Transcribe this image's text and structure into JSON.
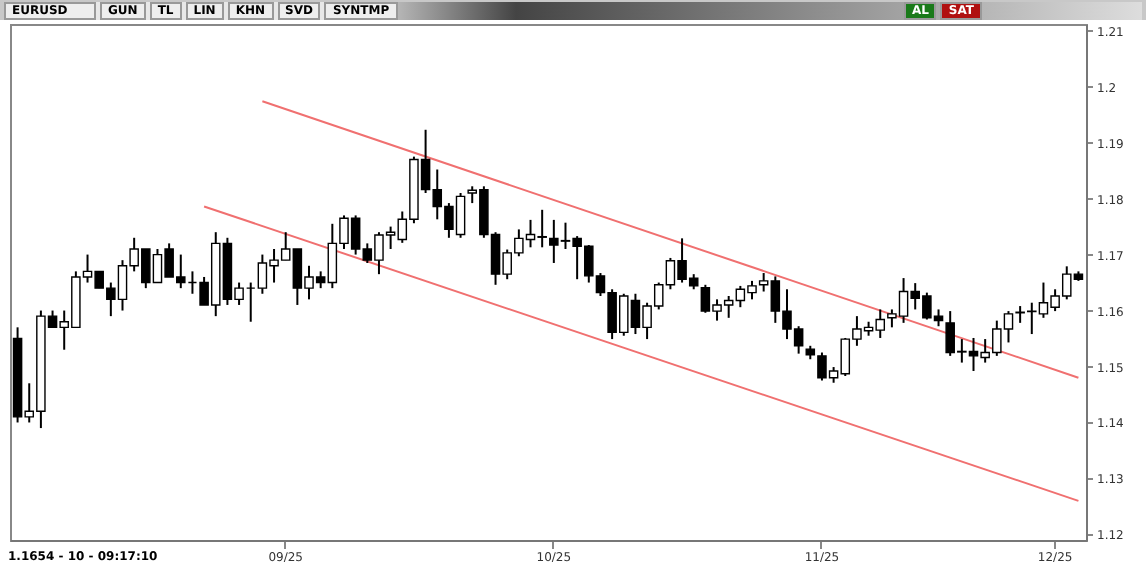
{
  "chart_data": {
    "type": "candlestick",
    "title": "EURUSD",
    "categories": [
      null,
      null,
      null,
      null,
      null,
      null,
      null,
      null,
      null,
      null,
      null,
      null,
      null,
      null,
      null,
      null,
      null,
      null,
      null,
      null,
      null,
      null,
      null,
      "09/25",
      null,
      null,
      null,
      null,
      null,
      null,
      null,
      null,
      null,
      null,
      null,
      null,
      null,
      null,
      null,
      null,
      null,
      null,
      null,
      null,
      null,
      null,
      "10/25",
      null,
      null,
      null,
      null,
      null,
      null,
      null,
      null,
      null,
      null,
      null,
      null,
      null,
      null,
      null,
      null,
      null,
      null,
      null,
      null,
      null,
      null,
      "11/25",
      null,
      null,
      null,
      null,
      null,
      null,
      null,
      null,
      null,
      null,
      null,
      null,
      null,
      null,
      null,
      null,
      null,
      null,
      null,
      "12/25",
      null,
      null
    ],
    "ohlc": [
      [
        1.155,
        1.157,
        1.14,
        1.141
      ],
      [
        1.141,
        1.147,
        1.14,
        1.142
      ],
      [
        1.142,
        1.16,
        1.139,
        1.159
      ],
      [
        1.159,
        1.16,
        1.157,
        1.157
      ],
      [
        1.157,
        1.16,
        1.153,
        1.158
      ],
      [
        1.157,
        1.167,
        1.157,
        1.166
      ],
      [
        1.166,
        1.17,
        1.165,
        1.167
      ],
      [
        1.167,
        1.167,
        1.164,
        1.164
      ],
      [
        1.164,
        1.165,
        1.159,
        1.162
      ],
      [
        1.162,
        1.169,
        1.16,
        1.168
      ],
      [
        1.168,
        1.173,
        1.167,
        1.171
      ],
      [
        1.171,
        1.171,
        1.164,
        1.165
      ],
      [
        1.165,
        1.171,
        1.165,
        1.17
      ],
      [
        1.171,
        1.172,
        1.166,
        1.166
      ],
      [
        1.166,
        1.17,
        1.164,
        1.165
      ],
      [
        1.165,
        1.167,
        1.163,
        1.165
      ],
      [
        1.165,
        1.166,
        1.161,
        1.161
      ],
      [
        1.161,
        1.174,
        1.159,
        1.172
      ],
      [
        1.172,
        1.173,
        1.161,
        1.162
      ],
      [
        1.162,
        1.165,
        1.161,
        1.164
      ],
      [
        1.164,
        1.165,
        1.158,
        1.164
      ],
      [
        1.164,
        1.17,
        1.163,
        1.1685
      ],
      [
        1.168,
        1.171,
        1.165,
        1.169
      ],
      [
        1.169,
        1.174,
        1.169,
        1.171
      ],
      [
        1.171,
        1.171,
        1.161,
        1.164
      ],
      [
        1.164,
        1.168,
        1.162,
        1.166
      ],
      [
        1.166,
        1.167,
        1.164,
        1.165
      ],
      [
        1.165,
        1.1755,
        1.164,
        1.172
      ],
      [
        1.172,
        1.177,
        1.171,
        1.1765
      ],
      [
        1.1765,
        1.177,
        1.17,
        1.171
      ],
      [
        1.171,
        1.172,
        1.1685,
        1.169
      ],
      [
        1.169,
        1.174,
        1.1665,
        1.1735
      ],
      [
        1.1735,
        1.175,
        1.171,
        1.174
      ],
      [
        1.1727,
        1.1777,
        1.1721,
        1.1763
      ],
      [
        1.1763,
        1.1875,
        1.1756,
        1.187
      ],
      [
        1.187,
        1.1923,
        1.181,
        1.1816
      ],
      [
        1.1816,
        1.1852,
        1.1763,
        1.1786
      ],
      [
        1.1786,
        1.1792,
        1.173,
        1.1745
      ],
      [
        1.1736,
        1.181,
        1.173,
        1.1804
      ],
      [
        1.181,
        1.1822,
        1.1792,
        1.1815
      ],
      [
        1.1816,
        1.1822,
        1.173,
        1.1736
      ],
      [
        1.1736,
        1.174,
        1.1646,
        1.1665
      ],
      [
        1.1665,
        1.1709,
        1.1656,
        1.1703
      ],
      [
        1.1703,
        1.1745,
        1.1697,
        1.1729
      ],
      [
        1.1727,
        1.1762,
        1.1713,
        1.1736
      ],
      [
        1.1732,
        1.178,
        1.1713,
        1.1731
      ],
      [
        1.1729,
        1.1762,
        1.1685,
        1.1717
      ],
      [
        1.1724,
        1.1757,
        1.171,
        1.1725
      ],
      [
        1.1729,
        1.1733,
        1.1656,
        1.1715
      ],
      [
        1.1715,
        1.1717,
        1.165,
        1.1662
      ],
      [
        1.1662,
        1.1667,
        1.1626,
        1.1632
      ],
      [
        1.1632,
        1.1638,
        1.1549,
        1.1561
      ],
      [
        1.1561,
        1.163,
        1.1555,
        1.1626
      ],
      [
        1.1618,
        1.163,
        1.1558,
        1.157
      ],
      [
        1.157,
        1.1614,
        1.1549,
        1.1608
      ],
      [
        1.1608,
        1.165,
        1.1602,
        1.1646
      ],
      [
        1.1646,
        1.1694,
        1.1638,
        1.1689
      ],
      [
        1.1689,
        1.1729,
        1.165,
        1.1656
      ],
      [
        1.1658,
        1.1665,
        1.1638,
        1.1644
      ],
      [
        1.1641,
        1.1646,
        1.1596,
        1.1599
      ],
      [
        1.1599,
        1.162,
        1.1582,
        1.161
      ],
      [
        1.161,
        1.1626,
        1.1587,
        1.1618
      ],
      [
        1.1618,
        1.1644,
        1.1606,
        1.1638
      ],
      [
        1.1632,
        1.1653,
        1.162,
        1.1644
      ],
      [
        1.1646,
        1.1667,
        1.1634,
        1.1653
      ],
      [
        1.1653,
        1.1661,
        1.1578,
        1.1599
      ],
      [
        1.1599,
        1.1638,
        1.1549,
        1.1567
      ],
      [
        1.1567,
        1.1572,
        1.1523,
        1.1537
      ],
      [
        1.1531,
        1.1537,
        1.1513,
        1.1521
      ],
      [
        1.1519,
        1.1525,
        1.1475,
        1.148
      ],
      [
        1.148,
        1.1499,
        1.1471,
        1.1492
      ],
      [
        1.1487,
        1.1551,
        1.1483,
        1.1549
      ],
      [
        1.1549,
        1.159,
        1.1537,
        1.1567
      ],
      [
        1.1564,
        1.158,
        1.1555,
        1.157
      ],
      [
        1.1565,
        1.1602,
        1.1551,
        1.1584
      ],
      [
        1.1587,
        1.1602,
        1.157,
        1.1594
      ],
      [
        1.159,
        1.1658,
        1.1578,
        1.1634
      ],
      [
        1.1634,
        1.1649,
        1.1602,
        1.1622
      ],
      [
        1.1626,
        1.1632,
        1.1584,
        1.1587
      ],
      [
        1.159,
        1.1602,
        1.1572,
        1.1582
      ],
      [
        1.1578,
        1.1599,
        1.1519,
        1.1525
      ],
      [
        1.1527,
        1.1549,
        1.1507,
        1.1526
      ],
      [
        1.1527,
        1.1551,
        1.1492,
        1.1519
      ],
      [
        1.1516,
        1.1549,
        1.1507,
        1.1525
      ],
      [
        1.1525,
        1.1582,
        1.1519,
        1.1567
      ],
      [
        1.1567,
        1.1599,
        1.1543,
        1.1594
      ],
      [
        1.1596,
        1.1608,
        1.1578,
        1.1597
      ],
      [
        1.1598,
        1.1614,
        1.1558,
        1.1599
      ],
      [
        1.1594,
        1.165,
        1.1587,
        1.1614
      ],
      [
        1.1606,
        1.1638,
        1.1599,
        1.1626
      ],
      [
        1.1626,
        1.1679,
        1.162,
        1.1665
      ],
      [
        1.1665,
        1.167,
        1.1653,
        1.1656
      ]
    ],
    "colors": [
      "#000000",
      "#ffffff",
      "#ffffff",
      "#000000",
      "#ffffff",
      "#ffffff",
      "#ffffff",
      "#000000",
      "#000000",
      "#ffffff",
      "#ffffff",
      "#000000",
      "#ffffff",
      "#000000",
      "#000000",
      "#000000",
      "#000000",
      "#ffffff",
      "#000000",
      "#ffffff",
      "#000000",
      "#ffffff",
      "#ffffff",
      "#ffffff",
      "#000000",
      "#ffffff",
      "#000000",
      "#ffffff",
      "#ffffff",
      "#000000",
      "#000000",
      "#ffffff",
      "#ffffff",
      "#ffffff",
      "#ffffff",
      "#000000",
      "#000000",
      "#000000",
      "#ffffff",
      "#ffffff",
      "#000000",
      "#000000",
      "#ffffff",
      "#ffffff",
      "#ffffff",
      "#000000",
      "#000000",
      "#ffffff",
      "#000000",
      "#000000",
      "#000000",
      "#000000",
      "#ffffff",
      "#000000",
      "#ffffff",
      "#ffffff",
      "#ffffff",
      "#000000",
      "#000000",
      "#000000",
      "#ffffff",
      "#ffffff",
      "#ffffff",
      "#ffffff",
      "#ffffff",
      "#000000",
      "#000000",
      "#000000",
      "#000000",
      "#000000",
      "#ffffff",
      "#ffffff",
      "#ffffff",
      "#ffffff",
      "#ffffff",
      "#ffffff",
      "#ffffff",
      "#000000",
      "#000000",
      "#000000",
      "#000000",
      "#000000",
      "#000000",
      "#ffffff",
      "#ffffff",
      "#ffffff",
      "#ffffff",
      "#ffffff",
      "#ffffff",
      "#ffffff",
      "#ffffff",
      "#000000"
    ],
    "series": [
      {
        "type": "line",
        "color": "#f07070",
        "values": [
          null,
          null,
          null,
          null,
          null,
          null,
          null,
          null,
          null,
          null,
          null,
          null,
          null,
          null,
          null,
          null,
          null,
          null,
          null,
          null,
          null,
          1.1974,
          null,
          null,
          null,
          null,
          null,
          null,
          null,
          null,
          null,
          null,
          null,
          null,
          null,
          null,
          null,
          null,
          null,
          null,
          null,
          null,
          null,
          null,
          null,
          null,
          null,
          null,
          null,
          null,
          null,
          null,
          null,
          null,
          null,
          null,
          null,
          null,
          null,
          null,
          null,
          null,
          null,
          null,
          null,
          null,
          null,
          null,
          null,
          null,
          null,
          null,
          null,
          null,
          null,
          null,
          null,
          null,
          null,
          null,
          null,
          null,
          null,
          null,
          null,
          null,
          null,
          null,
          null,
          null,
          null,
          1.148
        ]
      },
      {
        "type": "line",
        "color": "#f07070",
        "values": [
          null,
          null,
          null,
          null,
          null,
          null,
          null,
          null,
          null,
          null,
          null,
          null,
          null,
          null,
          null,
          null,
          1.1786,
          null,
          null,
          null,
          null,
          null,
          null,
          null,
          null,
          null,
          null,
          null,
          null,
          null,
          null,
          null,
          null,
          null,
          null,
          null,
          null,
          null,
          null,
          null,
          null,
          null,
          null,
          null,
          null,
          null,
          null,
          null,
          null,
          null,
          null,
          null,
          null,
          null,
          null,
          null,
          null,
          null,
          null,
          null,
          null,
          null,
          null,
          null,
          null,
          null,
          null,
          null,
          null,
          null,
          null,
          null,
          null,
          null,
          null,
          null,
          null,
          null,
          null,
          null,
          null,
          null,
          null,
          null,
          null,
          null,
          null,
          null,
          null,
          null,
          null,
          1.126
        ]
      }
    ],
    "ylim": [
      1.119,
      1.2112
    ],
    "yticks": [
      1.12,
      1.13,
      1.14,
      1.15,
      1.16,
      1.17,
      1.18,
      1.19,
      1.2,
      1.21
    ],
    "grid": false,
    "annotations": [
      "GUN",
      "TL",
      "LIN",
      "KHN",
      "SVD",
      "SYNTMP",
      "AL",
      "SAT",
      "1.1654 - 10 - 09:17:10"
    ]
  }
}
